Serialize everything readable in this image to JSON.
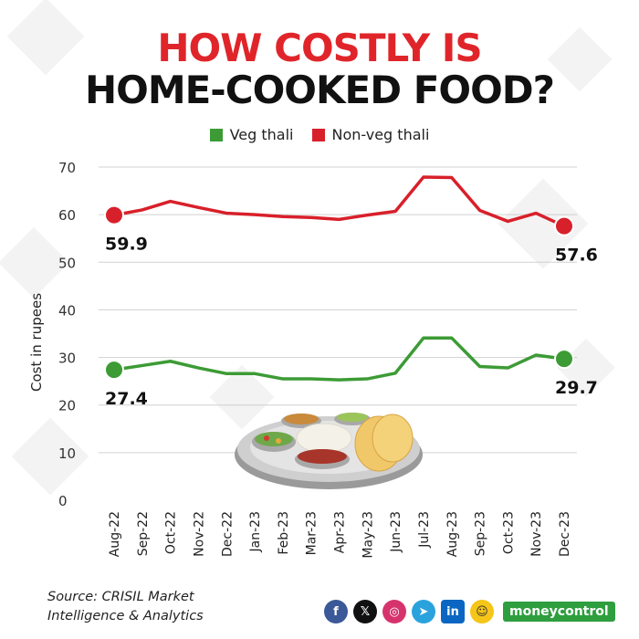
{
  "header": {
    "title_line1": "HOW COSTLY IS",
    "title_line2": "HOME-COOKED FOOD?"
  },
  "legend": {
    "veg_label": "Veg thali",
    "nonveg_label": "Non-veg thali"
  },
  "colors": {
    "veg": "#3c9b35",
    "nonveg": "#d8202a",
    "title_red": "#e0252a",
    "grid": "#d0d0d0",
    "brand": "#2e9e3f"
  },
  "chart_data": {
    "type": "line",
    "title": "HOW COSTLY IS HOME-COOKED FOOD?",
    "xlabel": "",
    "ylabel": "Cost in rupees",
    "ylim": [
      0,
      70
    ],
    "yticks": [
      0,
      10,
      20,
      30,
      40,
      50,
      60,
      70
    ],
    "grid": true,
    "legend_position": "top-center",
    "categories": [
      "Aug-22",
      "Sep-22",
      "Oct-22",
      "Nov-22",
      "Dec-22",
      "Jan-23",
      "Feb-23",
      "Mar-23",
      "Apr-23",
      "May-23",
      "Jun-23",
      "Jul-23",
      "Aug-23",
      "Sep-23",
      "Oct-23",
      "Nov-23",
      "Dec-23"
    ],
    "series": [
      {
        "name": "Non-veg thali",
        "values": [
          59.9,
          61.0,
          62.8,
          61.5,
          60.3,
          60.0,
          59.6,
          59.4,
          59.0,
          59.9,
          60.7,
          67.9,
          67.8,
          60.9,
          58.6,
          60.3,
          57.6
        ],
        "start_label": "59.9",
        "end_label": "57.6"
      },
      {
        "name": "Veg thali",
        "values": [
          27.4,
          28.3,
          29.2,
          27.8,
          26.6,
          26.6,
          25.5,
          25.5,
          25.3,
          25.5,
          26.7,
          34.1,
          34.1,
          28.1,
          27.8,
          30.5,
          29.7
        ],
        "start_label": "27.4",
        "end_label": "29.7"
      }
    ]
  },
  "footer": {
    "source_line1": "Source: CRISIL Market",
    "source_line2": "Intelligence & Analytics",
    "brand": "moneycontrol",
    "social_icons": [
      "facebook-icon",
      "x-icon",
      "instagram-icon",
      "telegram-icon",
      "linkedin-icon",
      "snapchat-icon"
    ]
  }
}
